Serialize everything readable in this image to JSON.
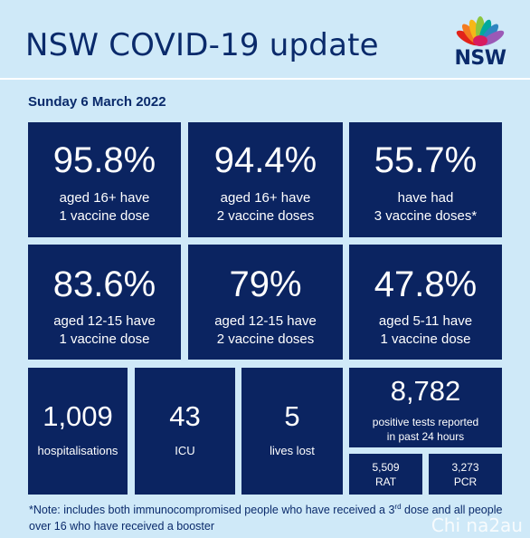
{
  "header": {
    "title": "NSW COVID-19 update",
    "logo_text": "NSW",
    "date": "Sunday 6 March 2022"
  },
  "stats": {
    "dose1_16": {
      "value": "95.8%",
      "line1": "aged 16+ have",
      "line2": "1 vaccine dose"
    },
    "dose2_16": {
      "value": "94.4%",
      "line1": "aged 16+ have",
      "line2": "2 vaccine doses"
    },
    "dose3": {
      "value": "55.7%",
      "line1": "have had",
      "line2": "3 vaccine doses*"
    },
    "dose1_12": {
      "value": "83.6%",
      "line1": "aged 12-15 have",
      "line2": "1 vaccine dose"
    },
    "dose2_12": {
      "value": "79%",
      "line1": "aged 12-15 have",
      "line2": "2 vaccine doses"
    },
    "dose1_5": {
      "value": "47.8%",
      "line1": "aged 5-11 have",
      "line2": "1 vaccine dose"
    },
    "hospitalisations": {
      "value": "1,009",
      "label": "hospitalisations"
    },
    "icu": {
      "value": "43",
      "label": "ICU"
    },
    "deaths": {
      "value": "5",
      "label": "lives lost"
    },
    "positives": {
      "value": "8,782",
      "line1": "positive tests reported",
      "line2": "in past 24 hours"
    },
    "rat": {
      "value": "5,509",
      "label": "RAT"
    },
    "pcr": {
      "value": "3,273",
      "label": "PCR"
    }
  },
  "note": {
    "part1": "*Note: includes both immunocompromised people who have received a 3",
    "sup": "rd",
    "part2": " dose and all people over 16 who have received a booster"
  },
  "watermark": "Chi na2au",
  "colors": {
    "background": "#cfe9f8",
    "tile": "#0b2461",
    "heading": "#0a2a6b"
  }
}
